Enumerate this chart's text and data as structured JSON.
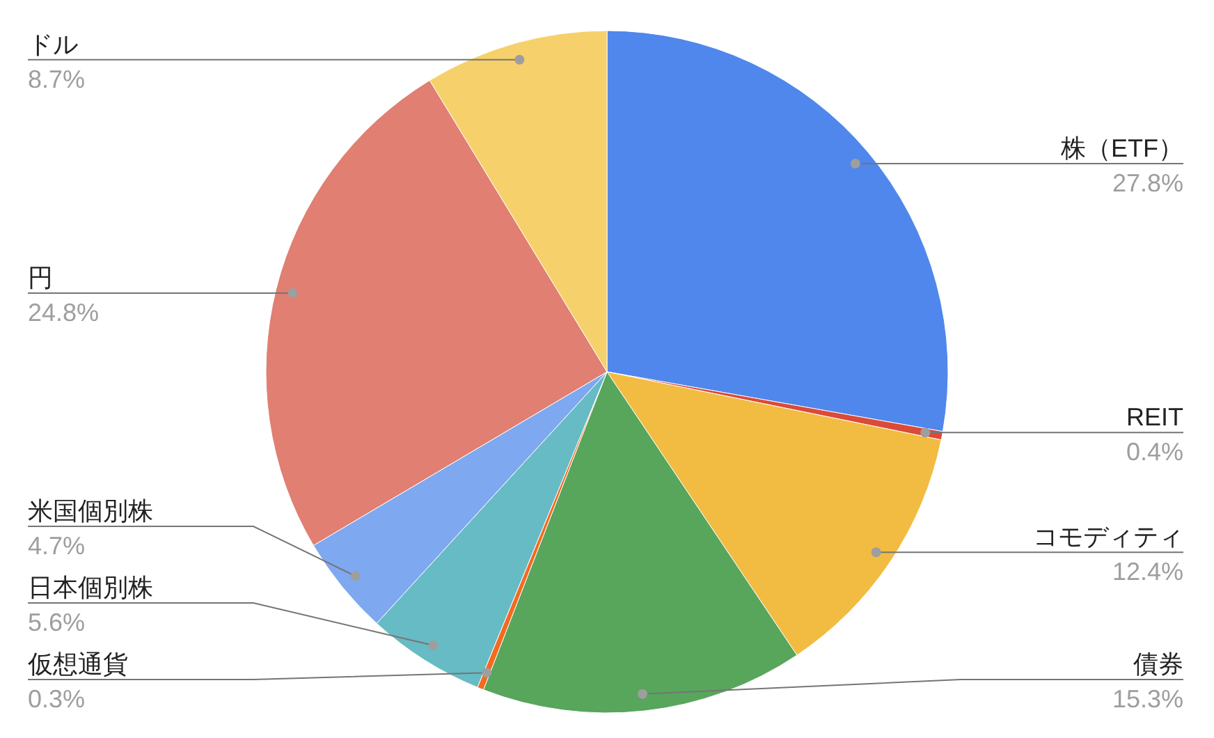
{
  "chart_data": {
    "type": "pie",
    "categories": [
      "株（ETF）",
      "REIT",
      "コモディティ",
      "債券",
      "仮想通貨",
      "日本個別株",
      "米国個別株",
      "円",
      "ドル"
    ],
    "values": [
      27.8,
      0.4,
      12.4,
      15.3,
      0.3,
      5.6,
      4.7,
      24.8,
      8.7
    ],
    "colors": [
      "#4f87ec",
      "#dc4a38",
      "#f2bc42",
      "#58a55c",
      "#f46a1f",
      "#67bbc4",
      "#7ea8ef",
      "#e07f72",
      "#f6d06b"
    ],
    "value_labels": [
      "27.8%",
      "0.4%",
      "12.4%",
      "15.3%",
      "0.3%",
      "5.6%",
      "4.7%",
      "24.8%",
      "8.7%"
    ]
  }
}
